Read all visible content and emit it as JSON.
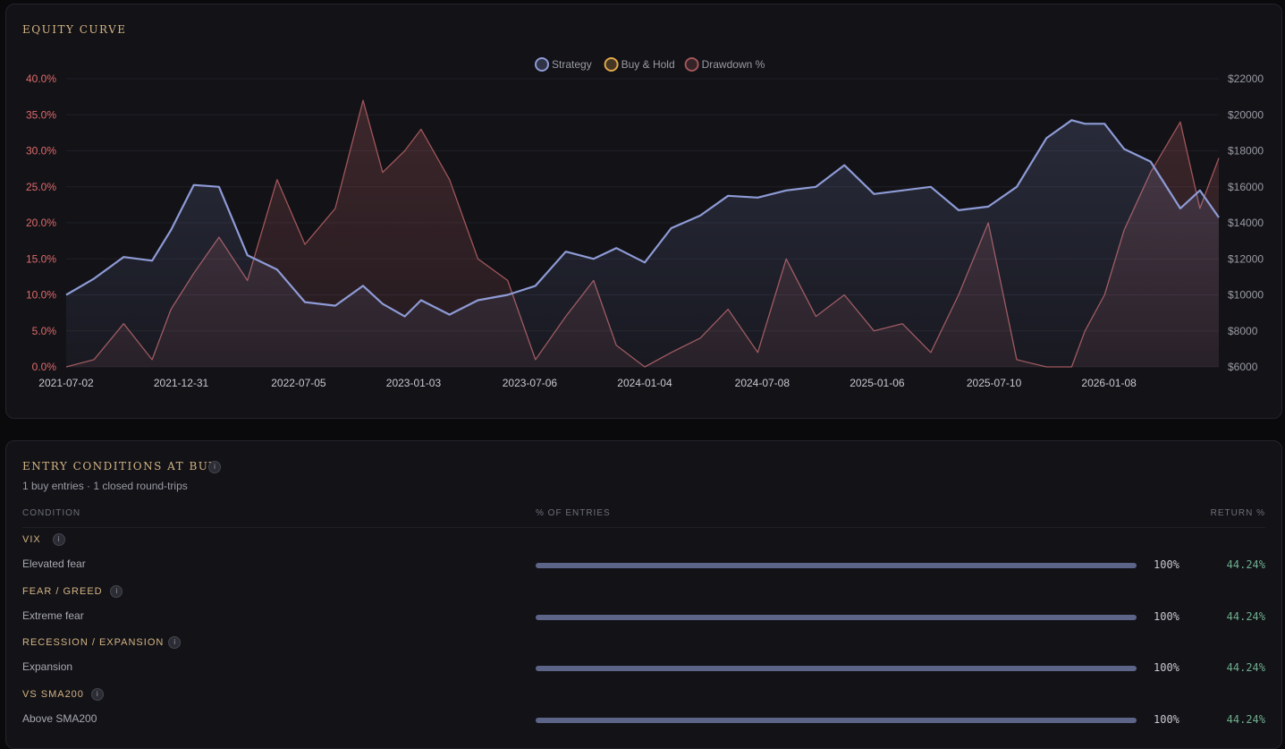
{
  "equity_curve": {
    "title": "EQUITY CURVE",
    "legend": [
      {
        "label": "Strategy",
        "color": "#8e9bd6"
      },
      {
        "label": "Buy & Hold",
        "color": "#e0a84a"
      },
      {
        "label": "Drawdown %",
        "color": "#a0565a"
      }
    ]
  },
  "chart_data": {
    "type": "line",
    "title": "EQUITY CURVE",
    "x_ticks": [
      "2021-07-02",
      "2021-12-31",
      "2022-07-05",
      "2023-01-03",
      "2023-07-06",
      "2024-01-04",
      "2024-07-08",
      "2025-01-06",
      "2025-07-10",
      "2026-01-08"
    ],
    "y_left": {
      "ticks": [
        "0.0%",
        "5.0%",
        "10.0%",
        "15.0%",
        "20.0%",
        "25.0%",
        "30.0%",
        "35.0%",
        "40.0%"
      ],
      "range": [
        0,
        40
      ],
      "color": "#e06a6a"
    },
    "y_right": {
      "ticks": [
        "$6000",
        "$8000",
        "$10000",
        "$12000",
        "$14000",
        "$16000",
        "$18000",
        "$20000",
        "$22000"
      ],
      "range": [
        6000,
        22000
      ],
      "color": "#9a9aa4"
    },
    "grid": true,
    "legend_position": "top-center",
    "series": [
      {
        "name": "Strategy",
        "axis": "right",
        "color": "#8e9bd6",
        "x": [
          "2021-07-02",
          "2021-08-15",
          "2021-10-01",
          "2021-11-15",
          "2021-12-15",
          "2022-01-20",
          "2022-03-01",
          "2022-04-15",
          "2022-06-01",
          "2022-07-15",
          "2022-09-01",
          "2022-10-15",
          "2022-11-15",
          "2022-12-20",
          "2023-01-15",
          "2023-03-01",
          "2023-04-15",
          "2023-06-01",
          "2023-07-15",
          "2023-09-01",
          "2023-10-15",
          "2023-11-20",
          "2024-01-04",
          "2024-02-15",
          "2024-04-01",
          "2024-05-15",
          "2024-07-01",
          "2024-08-15",
          "2024-10-01",
          "2024-11-15",
          "2025-01-01",
          "2025-02-15",
          "2025-04-01",
          "2025-05-15",
          "2025-07-01",
          "2025-08-15",
          "2025-10-01",
          "2025-11-10",
          "2025-12-01",
          "2026-01-01",
          "2026-02-01",
          "2026-03-15",
          "2026-05-01",
          "2026-06-01",
          "2026-07-01"
        ],
        "y": [
          10000,
          10900,
          12100,
          11900,
          13600,
          16100,
          16000,
          12200,
          11400,
          9600,
          9400,
          10500,
          9500,
          8800,
          9700,
          8900,
          9700,
          10000,
          10500,
          12400,
          12000,
          12600,
          11800,
          13700,
          14400,
          15500,
          15400,
          15800,
          16000,
          17200,
          15600,
          15800,
          16000,
          14700,
          14900,
          16000,
          18700,
          19700,
          19500,
          19500,
          18100,
          17400,
          14800,
          15800,
          14300
        ]
      },
      {
        "name": "Drawdown %",
        "axis": "left",
        "color": "#a0565a",
        "x": [
          "2021-07-02",
          "2021-08-15",
          "2021-10-01",
          "2021-11-15",
          "2021-12-15",
          "2022-01-20",
          "2022-03-01",
          "2022-04-15",
          "2022-06-01",
          "2022-07-15",
          "2022-09-01",
          "2022-10-15",
          "2022-11-15",
          "2022-12-20",
          "2023-01-15",
          "2023-03-01",
          "2023-04-15",
          "2023-06-01",
          "2023-07-15",
          "2023-09-01",
          "2023-10-15",
          "2023-11-20",
          "2024-01-04",
          "2024-02-15",
          "2024-04-01",
          "2024-05-15",
          "2024-07-01",
          "2024-08-15",
          "2024-10-01",
          "2024-11-15",
          "2025-01-01",
          "2025-02-15",
          "2025-04-01",
          "2025-05-15",
          "2025-07-01",
          "2025-08-15",
          "2025-10-01",
          "2025-11-10",
          "2025-12-01",
          "2026-01-01",
          "2026-02-01",
          "2026-03-15",
          "2026-05-01",
          "2026-06-01",
          "2026-07-01"
        ],
        "y": [
          0,
          1,
          6,
          1,
          8,
          13,
          18,
          12,
          26,
          17,
          22,
          37,
          27,
          30,
          33,
          26,
          15,
          12,
          1,
          7,
          12,
          3,
          0,
          2,
          4,
          8,
          2,
          15,
          7,
          10,
          5,
          6,
          2,
          10,
          20,
          1,
          0,
          0,
          5,
          10,
          19,
          27,
          34,
          22,
          29
        ]
      }
    ]
  },
  "entry_conditions": {
    "title": "ENTRY CONDITIONS AT BUY",
    "info_glyph": "i",
    "subtitle": "1 buy entries · 1 closed round-trips",
    "columns": {
      "condition": "CONDITION",
      "entries": "% OF ENTRIES",
      "return": "RETURN %"
    },
    "rows": [
      {
        "name": "VIX",
        "value": "Elevated fear",
        "pct_label": "100%",
        "pct": 100,
        "return": "44.24%"
      },
      {
        "name": "FEAR / GREED",
        "value": "Extreme fear",
        "pct_label": "100%",
        "pct": 100,
        "return": "44.24%"
      },
      {
        "name": "RECESSION / EXPANSION",
        "value": "Expansion",
        "pct_label": "100%",
        "pct": 100,
        "return": "44.24%"
      },
      {
        "name": "VS SMA200",
        "value": "Above SMA200",
        "pct_label": "100%",
        "pct": 100,
        "return": "44.24%"
      }
    ]
  }
}
